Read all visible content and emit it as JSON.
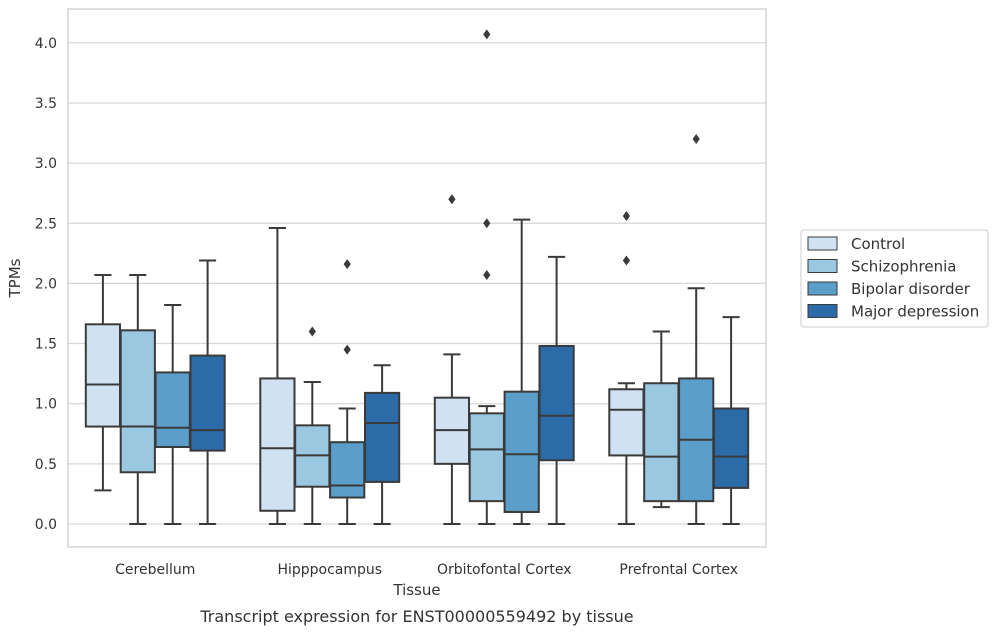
{
  "chart_data": {
    "type": "box",
    "caption": "Transcript expression for ENST00000559492 by tissue",
    "xlabel": "Tissue",
    "ylabel": "TPMs",
    "ylim": [
      -0.2,
      4.28
    ],
    "yticks": [
      "0.0",
      "0.5",
      "1.0",
      "1.5",
      "2.0",
      "2.5",
      "3.0",
      "3.5",
      "4.0"
    ],
    "grid": "horizontal",
    "legend_position": "right",
    "categories": [
      "Cerebellum",
      "Hipppocampus",
      "Orbitofontal Cortex",
      "Prefrontal Cortex"
    ],
    "series": [
      {
        "name": "Control",
        "color": "#d0e2f2",
        "boxes": [
          {
            "whislo": 0.28,
            "q1": 0.81,
            "med": 1.16,
            "q3": 1.66,
            "whishi": 2.07,
            "fliers": []
          },
          {
            "whislo": 0.0,
            "q1": 0.11,
            "med": 0.63,
            "q3": 1.21,
            "whishi": 2.46,
            "fliers": []
          },
          {
            "whislo": 0.0,
            "q1": 0.5,
            "med": 0.78,
            "q3": 1.05,
            "whishi": 1.41,
            "fliers": [
              2.7
            ]
          },
          {
            "whislo": 0.0,
            "q1": 0.57,
            "med": 0.95,
            "q3": 1.12,
            "whishi": 1.17,
            "fliers": [
              2.56,
              2.19
            ]
          }
        ]
      },
      {
        "name": "Schizophrenia",
        "color": "#9ac8e0",
        "boxes": [
          {
            "whislo": 0.0,
            "q1": 0.43,
            "med": 0.81,
            "q3": 1.61,
            "whishi": 2.07,
            "fliers": []
          },
          {
            "whislo": 0.0,
            "q1": 0.31,
            "med": 0.57,
            "q3": 0.82,
            "whishi": 1.18,
            "fliers": [
              1.6
            ]
          },
          {
            "whislo": 0.0,
            "q1": 0.19,
            "med": 0.62,
            "q3": 0.92,
            "whishi": 0.98,
            "fliers": [
              2.5,
              2.07,
              4.07
            ]
          },
          {
            "whislo": 0.14,
            "q1": 0.19,
            "med": 0.56,
            "q3": 1.17,
            "whishi": 1.6,
            "fliers": []
          }
        ]
      },
      {
        "name": "Bipolar disorder",
        "color": "#5a9ec9",
        "boxes": [
          {
            "whislo": 0.0,
            "q1": 0.64,
            "med": 0.8,
            "q3": 1.26,
            "whishi": 1.82,
            "fliers": []
          },
          {
            "whislo": 0.0,
            "q1": 0.22,
            "med": 0.32,
            "q3": 0.68,
            "whishi": 0.96,
            "fliers": [
              2.16,
              1.45
            ]
          },
          {
            "whislo": 0.0,
            "q1": 0.1,
            "med": 0.58,
            "q3": 1.1,
            "whishi": 2.53,
            "fliers": []
          },
          {
            "whislo": 0.0,
            "q1": 0.19,
            "med": 0.7,
            "q3": 1.21,
            "whishi": 1.96,
            "fliers": [
              3.2
            ]
          }
        ]
      },
      {
        "name": "Major depression",
        "color": "#2b6ba8",
        "boxes": [
          {
            "whislo": 0.0,
            "q1": 0.61,
            "med": 0.78,
            "q3": 1.4,
            "whishi": 2.19,
            "fliers": []
          },
          {
            "whislo": 0.0,
            "q1": 0.35,
            "med": 0.84,
            "q3": 1.09,
            "whishi": 1.32,
            "fliers": []
          },
          {
            "whislo": 0.0,
            "q1": 0.53,
            "med": 0.9,
            "q3": 1.48,
            "whishi": 2.22,
            "fliers": []
          },
          {
            "whislo": 0.0,
            "q1": 0.3,
            "med": 0.56,
            "q3": 0.96,
            "whishi": 1.72,
            "fliers": []
          }
        ]
      }
    ]
  }
}
